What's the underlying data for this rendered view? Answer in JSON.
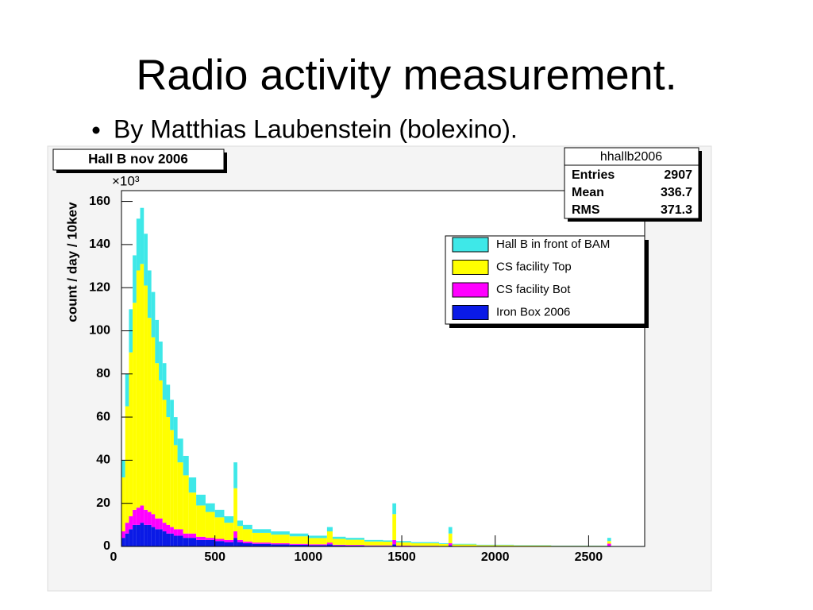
{
  "slide": {
    "title": "Radio activity measurement.",
    "bullet": "By Matthias Laubenstein (bolexino)."
  },
  "chart_data": {
    "type": "histogram",
    "title": "Hall B nov 2006",
    "y_label": "count / day / 10kev",
    "y_multiplier": "×10³",
    "stacked": true,
    "legend_position": "upper right",
    "xlim": [
      0,
      2800
    ],
    "xticks": [
      0,
      500,
      1000,
      1500,
      2000,
      2500
    ],
    "ylim": [
      0,
      165
    ],
    "yticks": [
      0,
      20,
      40,
      60,
      80,
      100,
      120,
      140,
      160
    ],
    "bins": [
      0,
      20,
      40,
      60,
      80,
      100,
      120,
      140,
      160,
      180,
      200,
      220,
      240,
      260,
      280,
      300,
      330,
      360,
      400,
      450,
      500,
      550,
      600,
      620,
      650,
      700,
      800,
      900,
      1000,
      1100,
      1130,
      1200,
      1300,
      1400,
      1450,
      1470,
      1550,
      1700,
      1750,
      1770,
      1900,
      2100,
      2300,
      2600,
      2620,
      2800
    ],
    "series": [
      {
        "name": "Hall B in front of BAM",
        "color": "#3ee8e8",
        "values": [
          8,
          15,
          20,
          22,
          24,
          26,
          24,
          22,
          21,
          20,
          18,
          17,
          15,
          14,
          13,
          11,
          9,
          7,
          5,
          4,
          3.5,
          3,
          12,
          2.5,
          2,
          1.7,
          1.5,
          1.3,
          1.1,
          2,
          1,
          0.9,
          0.7,
          0.6,
          5,
          0.6,
          0.5,
          0.4,
          3,
          0.3,
          0.2,
          0.15,
          0.1,
          1.5,
          0.05
        ]
      },
      {
        "name": "CS facility Top",
        "color": "#ffff00",
        "values": [
          25,
          54,
          76,
          96,
          110,
          112,
          104,
          90,
          82,
          72,
          64,
          57,
          50,
          45,
          39,
          31,
          27,
          19,
          14.5,
          12,
          10,
          8,
          20,
          6.5,
          5.7,
          4.5,
          4,
          3.5,
          2.9,
          5.2,
          2.7,
          2.4,
          1.8,
          1.7,
          12,
          1.5,
          1.2,
          0.9,
          4.5,
          0.7,
          0.4,
          0.3,
          0.2,
          1.2,
          0.08
        ]
      },
      {
        "name": "CS facility Bot",
        "color": "#ff00ff",
        "values": [
          3,
          5,
          6,
          7,
          8,
          8,
          7,
          6,
          6,
          5,
          5,
          4,
          4,
          3,
          3,
          3,
          2,
          2,
          1.5,
          1,
          1,
          1,
          3,
          1,
          0.8,
          0.6,
          0.5,
          0.4,
          0.4,
          0.8,
          0.3,
          0.3,
          0.2,
          0.2,
          2,
          0.2,
          0.1,
          0.1,
          1,
          0.1,
          0.1,
          0.05,
          0.05,
          1,
          0.02
        ]
      },
      {
        "name": "Iron Box 2006",
        "color": "#0a1ae6",
        "values": [
          4,
          6,
          8,
          10,
          10,
          11,
          10,
          10,
          9,
          8,
          8,
          7,
          6,
          6,
          5,
          5,
          4,
          4,
          3,
          3,
          2.5,
          2,
          4,
          2,
          1.5,
          1.2,
          1,
          0.8,
          0.6,
          1,
          0.5,
          0.4,
          0.3,
          0.3,
          1,
          0.2,
          0.2,
          0.1,
          0.5,
          0.1,
          0.1,
          0.1,
          0.05,
          0.3,
          0.05
        ]
      }
    ],
    "stats": {
      "title": "hhallb2006",
      "rows": [
        [
          "Entries",
          2907
        ],
        [
          "Mean",
          336.7
        ],
        [
          "RMS",
          371.3
        ]
      ]
    }
  }
}
